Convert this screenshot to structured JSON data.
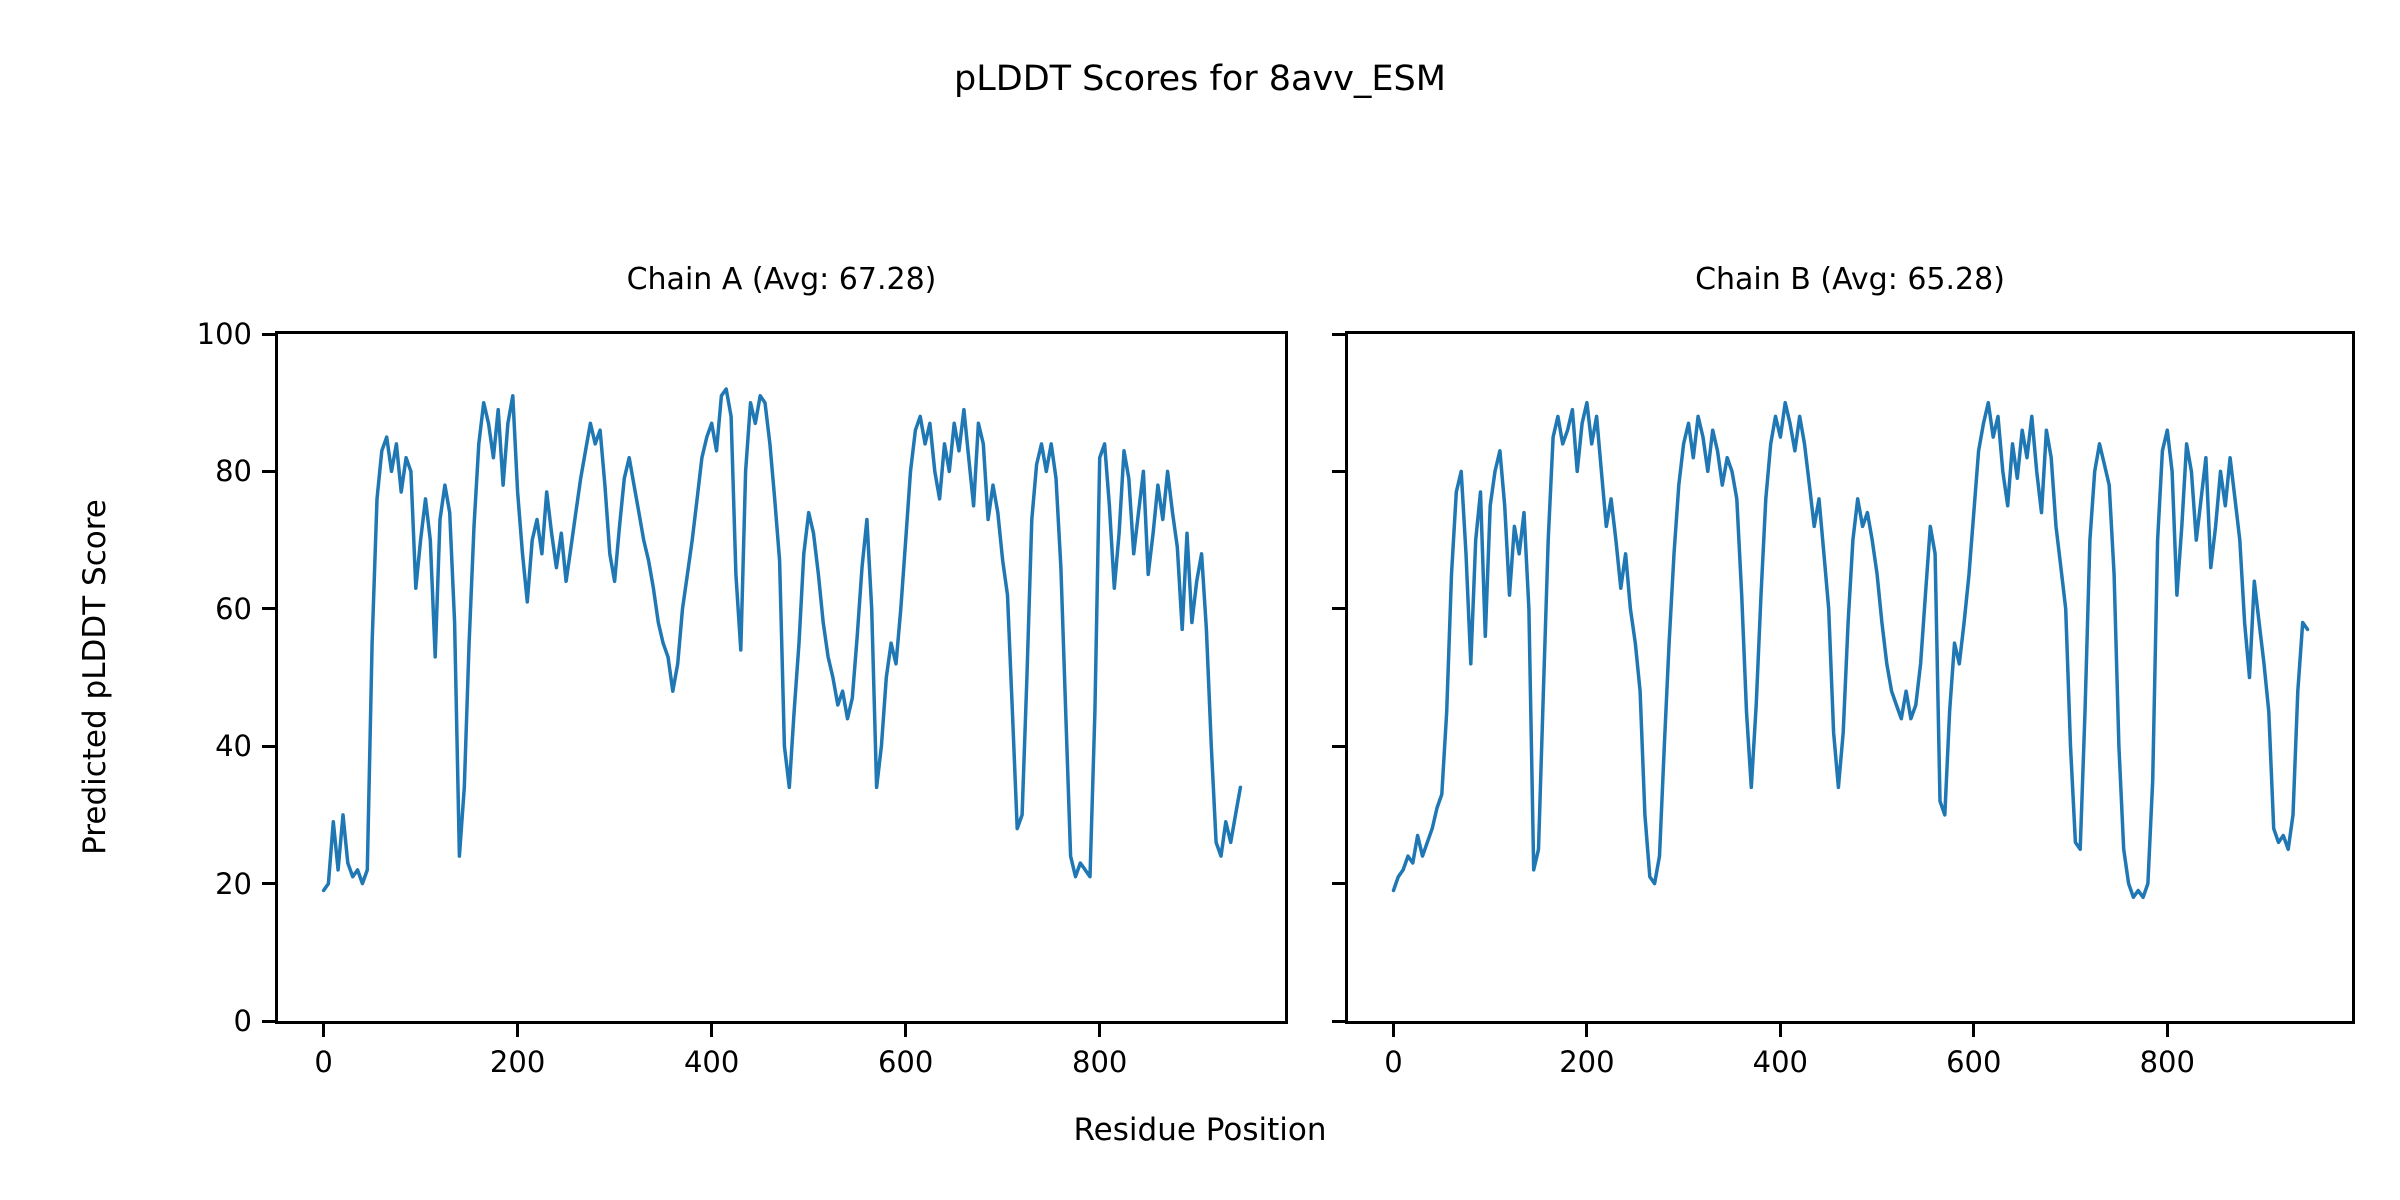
{
  "figure": {
    "title": "pLDDT Scores for 8avv_ESM",
    "xlabel": "Residue Position",
    "ylabel": "Predicted pLDDT Score",
    "background_color": "#ffffff",
    "text_color": "#000000"
  },
  "chart_data": [
    {
      "type": "line",
      "chain": "A",
      "title": "Chain A (Avg: 67.28)",
      "avg": 67.28,
      "line_color": "#1f77b4",
      "grid": false,
      "legend": "none",
      "xlim": [
        -47,
        991
      ],
      "ylim": [
        0,
        100
      ],
      "xticks": [
        0,
        200,
        400,
        600,
        800
      ],
      "yticks": [
        0,
        20,
        40,
        60,
        80,
        100
      ],
      "ytick_labels_visible": true,
      "x_start": 0,
      "x_step": 5,
      "values": [
        19,
        20,
        29,
        22,
        30,
        23,
        21,
        22,
        20,
        22,
        55,
        76,
        83,
        85,
        80,
        84,
        77,
        82,
        80,
        63,
        70,
        76,
        70,
        53,
        73,
        78,
        74,
        58,
        24,
        34,
        55,
        72,
        84,
        90,
        87,
        82,
        89,
        78,
        87,
        91,
        77,
        68,
        61,
        70,
        73,
        68,
        77,
        71,
        66,
        71,
        64,
        69,
        74,
        79,
        83,
        87,
        84,
        86,
        78,
        68,
        64,
        72,
        79,
        82,
        78,
        74,
        70,
        67,
        63,
        58,
        55,
        53,
        48,
        52,
        60,
        65,
        70,
        76,
        82,
        85,
        87,
        83,
        91,
        92,
        88,
        65,
        54,
        80,
        90,
        87,
        91,
        90,
        84,
        76,
        67,
        40,
        34,
        45,
        55,
        68,
        74,
        71,
        65,
        58,
        53,
        50,
        46,
        48,
        44,
        47,
        56,
        66,
        73,
        60,
        34,
        40,
        50,
        55,
        52,
        60,
        70,
        80,
        86,
        88,
        84,
        87,
        80,
        76,
        84,
        80,
        87,
        83,
        89,
        82,
        75,
        87,
        84,
        73,
        78,
        74,
        67,
        62,
        45,
        28,
        30,
        50,
        73,
        81,
        84,
        80,
        84,
        79,
        66,
        45,
        24,
        21,
        23,
        22,
        21,
        45,
        82,
        84,
        75,
        63,
        71,
        83,
        79,
        68,
        74,
        80,
        65,
        71,
        78,
        73,
        80,
        74,
        69,
        57,
        71,
        58,
        64,
        68,
        57,
        40,
        26,
        24,
        29,
        26,
        30,
        34
      ]
    },
    {
      "type": "line",
      "chain": "B",
      "title": "Chain B (Avg: 65.28)",
      "avg": 65.28,
      "line_color": "#1f77b4",
      "grid": false,
      "legend": "none",
      "xlim": [
        -47,
        991
      ],
      "ylim": [
        0,
        100
      ],
      "xticks": [
        0,
        200,
        400,
        600,
        800
      ],
      "yticks": [
        0,
        20,
        40,
        60,
        80,
        100
      ],
      "ytick_labels_visible": false,
      "x_start": 0,
      "x_step": 5,
      "values": [
        19,
        21,
        22,
        24,
        23,
        27,
        24,
        26,
        28,
        31,
        33,
        45,
        65,
        77,
        80,
        68,
        52,
        70,
        77,
        56,
        75,
        80,
        83,
        75,
        62,
        72,
        68,
        74,
        60,
        22,
        25,
        48,
        70,
        85,
        88,
        84,
        86,
        89,
        80,
        87,
        90,
        84,
        88,
        80,
        72,
        76,
        70,
        63,
        68,
        60,
        55,
        48,
        30,
        21,
        20,
        24,
        40,
        55,
        68,
        78,
        84,
        87,
        82,
        88,
        85,
        80,
        86,
        83,
        78,
        82,
        80,
        76,
        62,
        45,
        34,
        46,
        62,
        76,
        84,
        88,
        85,
        90,
        87,
        83,
        88,
        84,
        78,
        72,
        76,
        68,
        60,
        42,
        34,
        42,
        58,
        70,
        76,
        72,
        74,
        70,
        65,
        58,
        52,
        48,
        46,
        44,
        48,
        44,
        46,
        52,
        62,
        72,
        68,
        32,
        30,
        45,
        55,
        52,
        58,
        65,
        74,
        83,
        87,
        90,
        85,
        88,
        80,
        75,
        84,
        79,
        86,
        82,
        88,
        80,
        74,
        86,
        82,
        72,
        66,
        60,
        40,
        26,
        25,
        45,
        70,
        80,
        84,
        81,
        78,
        65,
        40,
        25,
        20,
        18,
        19,
        18,
        20,
        35,
        70,
        83,
        86,
        80,
        62,
        72,
        84,
        80,
        70,
        76,
        82,
        66,
        72,
        80,
        75,
        82,
        76,
        70,
        58,
        50,
        64,
        58,
        52,
        45,
        28,
        26,
        27,
        25,
        30,
        48,
        58,
        57
      ]
    }
  ]
}
